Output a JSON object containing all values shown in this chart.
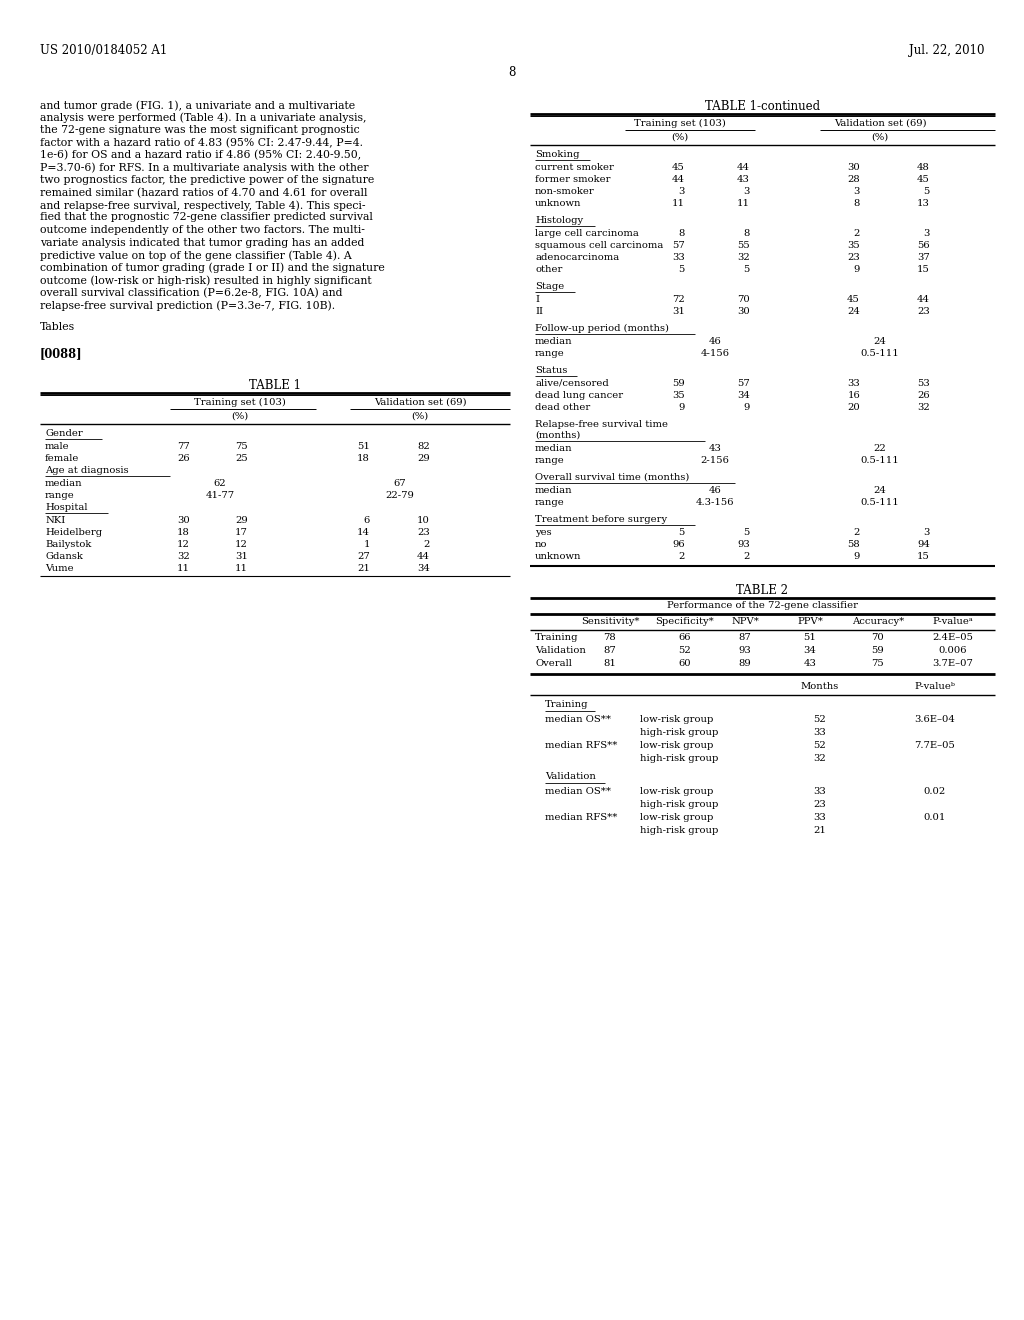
{
  "bg_color": "#ffffff",
  "header_left": "US 2010/0184052 A1",
  "header_right": "Jul. 22, 2010",
  "page_number": "8",
  "body_text": [
    "and tumor grade (FIG. 1), a univariate and a multivariate",
    "analysis were performed (Table 4). In a univariate analysis,",
    "the 72-gene signature was the most significant prognostic",
    "factor with a hazard ratio of 4.83 (95% CI: 2.47-9.44, P=4.",
    "1e-6) for OS and a hazard ratio if 4.86 (95% CI: 2.40-9.50,",
    "P=3.70-6) for RFS. In a multivariate analysis with the other",
    "two prognostics factor, the predictive power of the signature",
    "remained similar (hazard ratios of 4.70 and 4.61 for overall",
    "and relapse-free survival, respectively, Table 4). This speci-",
    "fied that the prognostic 72-gene classifier predicted survival",
    "outcome independently of the other two factors. The multi-",
    "variate analysis indicated that tumor grading has an added",
    "predictive value on top of the gene classifier (Table 4). A",
    "combination of tumor grading (grade I or II) and the signature",
    "outcome (low-risk or high-risk) resulted in highly significant",
    "overall survival classification (P=6.2e-8, FIG. 10A) and",
    "relapse-free survival prediction (P=3.3e-7, FIG. 10B)."
  ]
}
